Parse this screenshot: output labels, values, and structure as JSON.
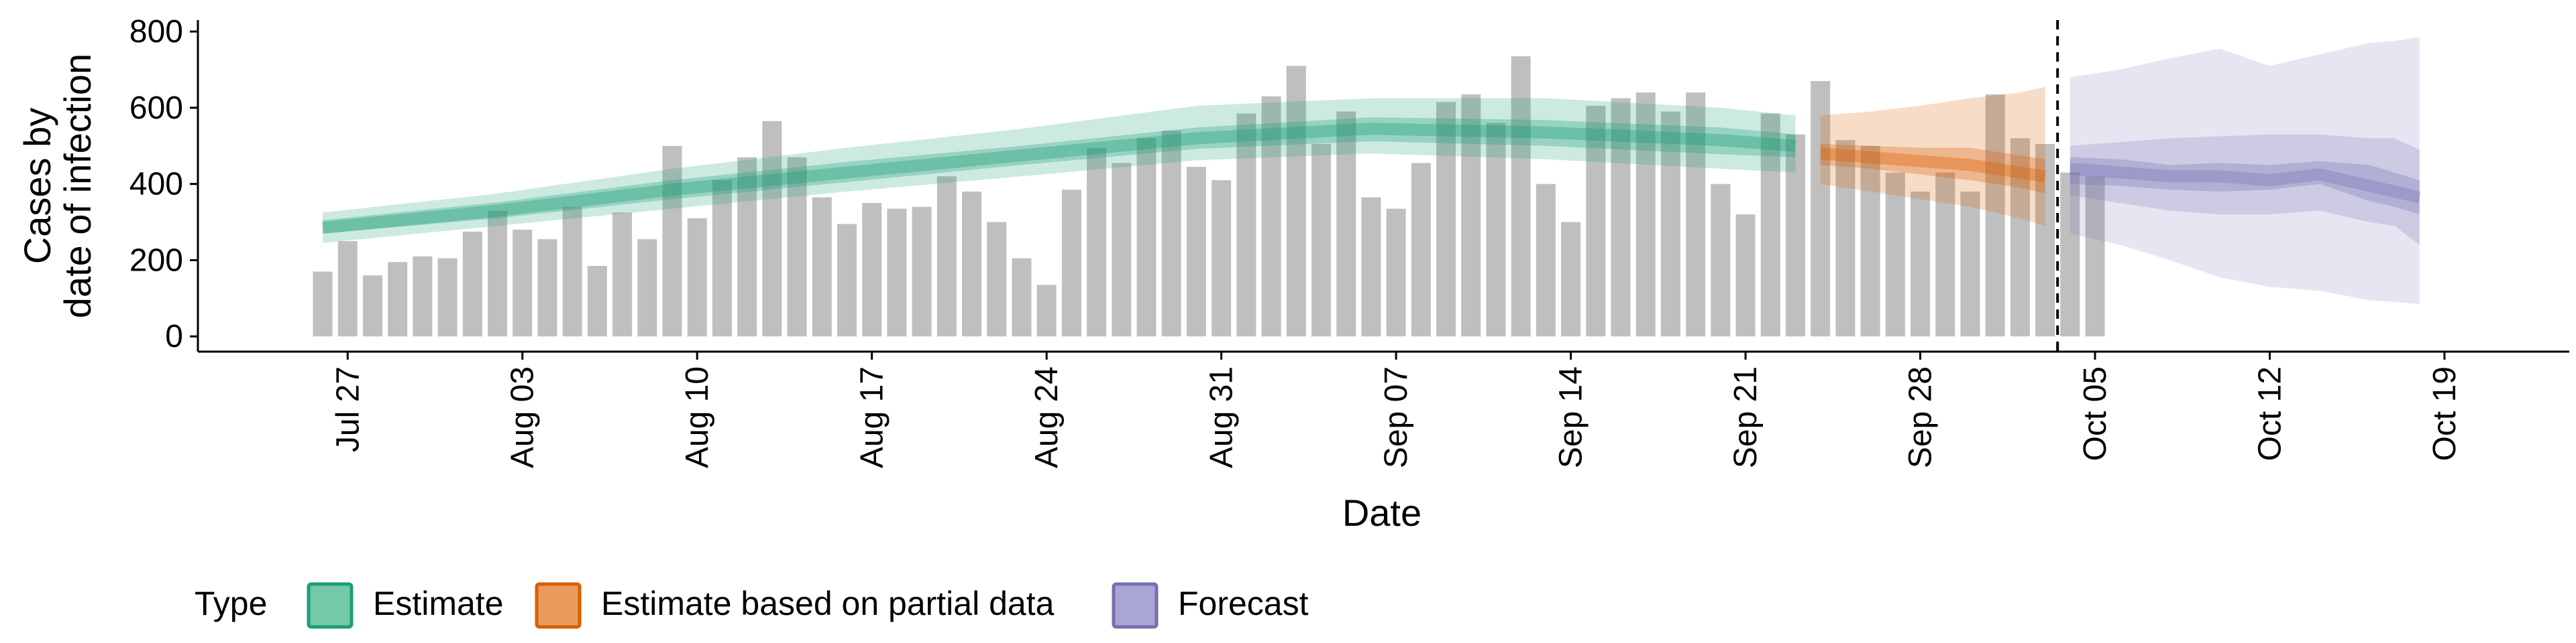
{
  "chart_data": {
    "type": "bar",
    "xlabel": "Date",
    "ylabel_lines": [
      "Cases by",
      "date of infection"
    ],
    "ylim": [
      -40,
      830
    ],
    "yticks": [
      0,
      200,
      400,
      600,
      800
    ],
    "x_range_days": [
      -6.0,
      89.0
    ],
    "x_ticks": [
      {
        "day": 0,
        "label": "Jul 27"
      },
      {
        "day": 7,
        "label": "Aug 03"
      },
      {
        "day": 14,
        "label": "Aug 10"
      },
      {
        "day": 21,
        "label": "Aug 17"
      },
      {
        "day": 28,
        "label": "Aug 24"
      },
      {
        "day": 35,
        "label": "Aug 31"
      },
      {
        "day": 42,
        "label": "Sep 07"
      },
      {
        "day": 49,
        "label": "Sep 14"
      },
      {
        "day": 56,
        "label": "Sep 21"
      },
      {
        "day": 63,
        "label": "Sep 28"
      },
      {
        "day": 70,
        "label": "Oct 05"
      },
      {
        "day": 77,
        "label": "Oct 12"
      },
      {
        "day": 84,
        "label": "Oct 19"
      }
    ],
    "bars": {
      "start_day": -1,
      "values": [
        170,
        250,
        160,
        195,
        210,
        205,
        275,
        330,
        280,
        255,
        340,
        185,
        325,
        255,
        500,
        310,
        410,
        470,
        565,
        470,
        365,
        295,
        350,
        335,
        340,
        420,
        380,
        300,
        205,
        135,
        385,
        495,
        455,
        520,
        540,
        445,
        410,
        585,
        630,
        710,
        505,
        590,
        365,
        335,
        455,
        615,
        635,
        560,
        735,
        400,
        300,
        605,
        625,
        640,
        590,
        640,
        400,
        320,
        585,
        530,
        670,
        515,
        500,
        430,
        380,
        430,
        380,
        635,
        520,
        505,
        430,
        420
      ]
    },
    "forecast_cutoff_day": 68.5,
    "series": [
      {
        "name": "Estimate",
        "color": "#1b9e77",
        "days": [
          -1,
          6,
          13,
          20,
          27,
          34,
          41,
          48,
          55,
          58
        ],
        "median": [
          285,
          330,
          385,
          430,
          475,
          520,
          545,
          535,
          515,
          500
        ],
        "inner_low": [
          270,
          310,
          360,
          405,
          450,
          492,
          512,
          500,
          478,
          470
        ],
        "inner_high": [
          305,
          352,
          410,
          458,
          500,
          548,
          575,
          568,
          548,
          530
        ],
        "outer_low": [
          245,
          290,
          335,
          380,
          420,
          462,
          480,
          465,
          440,
          430
        ],
        "outer_high": [
          325,
          375,
          440,
          495,
          545,
          605,
          625,
          625,
          600,
          580
        ]
      },
      {
        "name": "Estimate based on partial data",
        "color": "#d95f02",
        "days": [
          59,
          61,
          63,
          65,
          67,
          68
        ],
        "median": [
          480,
          470,
          460,
          450,
          430,
          420
        ],
        "inner_low": [
          450,
          440,
          425,
          410,
          390,
          375
        ],
        "inner_high": [
          505,
          500,
          495,
          495,
          475,
          465
        ],
        "outer_low": [
          400,
          380,
          360,
          340,
          310,
          290
        ],
        "outer_high": [
          580,
          590,
          605,
          625,
          640,
          655
        ]
      },
      {
        "name": "Forecast",
        "color": "#7570b3",
        "days": [
          69,
          71,
          73,
          75,
          77,
          79,
          81,
          82,
          83
        ],
        "median": [
          440,
          430,
          420,
          420,
          410,
          425,
          395,
          380,
          365
        ],
        "inner_low": [
          400,
          395,
          385,
          380,
          385,
          400,
          355,
          340,
          320
        ],
        "inner_high": [
          470,
          465,
          450,
          455,
          450,
          460,
          450,
          430,
          410
        ],
        "outer_low": [
          370,
          350,
          330,
          320,
          320,
          330,
          300,
          290,
          240
        ],
        "outer_high": [
          500,
          510,
          520,
          525,
          530,
          530,
          520,
          520,
          490
        ],
        "wide_low": [
          270,
          240,
          200,
          155,
          130,
          120,
          95,
          90,
          85
        ],
        "wide_high": [
          680,
          700,
          730,
          755,
          710,
          740,
          770,
          775,
          785
        ]
      }
    ],
    "legend": {
      "title": "Type",
      "position": "bottom-left",
      "entries": [
        "Estimate",
        "Estimate based on partial data",
        "Forecast"
      ]
    },
    "colors": {
      "bar": "#bfbfbf",
      "estimate": "#1b9e77",
      "partial": "#d95f02",
      "forecast": "#7570b3",
      "estimate_fill": "#75c9a6",
      "partial_fill": "#e89b5c",
      "forecast_fill": "#a9a6d6"
    }
  }
}
